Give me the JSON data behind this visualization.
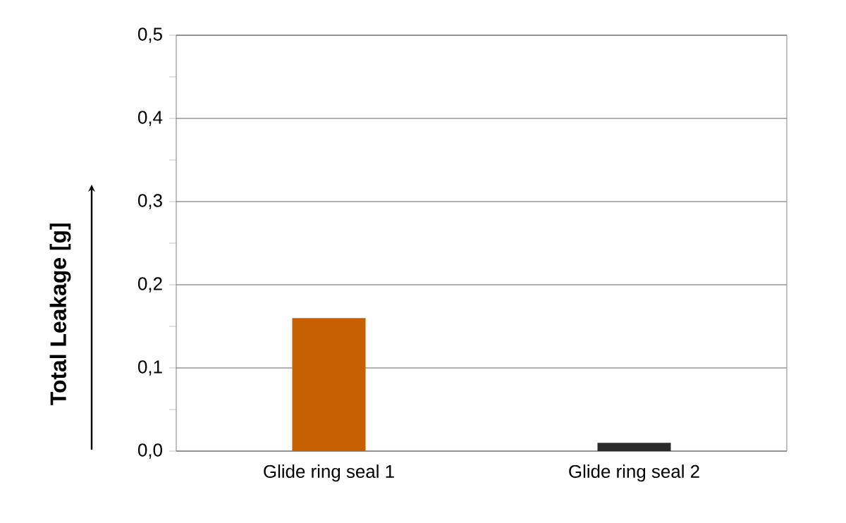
{
  "chart_data": {
    "type": "bar",
    "ylabel": "Total Leakage [g]",
    "categories": [
      "Glide ring seal 1",
      "Glide ring seal 2"
    ],
    "values": [
      0.16,
      0.01
    ],
    "colors": [
      "#c55f00",
      "#2b2b2b"
    ],
    "ylim": [
      0,
      0.5
    ],
    "yticks": [
      {
        "value": 0,
        "label": "0,0"
      },
      {
        "value": 0.05,
        "label": null
      },
      {
        "value": 0.1,
        "label": "0,1"
      },
      {
        "value": 0.15,
        "label": null
      },
      {
        "value": 0.2,
        "label": "0,2"
      },
      {
        "value": 0.25,
        "label": null
      },
      {
        "value": 0.3,
        "label": "0,3"
      },
      {
        "value": 0.35,
        "label": null
      },
      {
        "value": 0.4,
        "label": "0,4"
      },
      {
        "value": 0.45,
        "label": null
      },
      {
        "value": 0.5,
        "label": "0,5"
      }
    ],
    "grid": "y"
  }
}
